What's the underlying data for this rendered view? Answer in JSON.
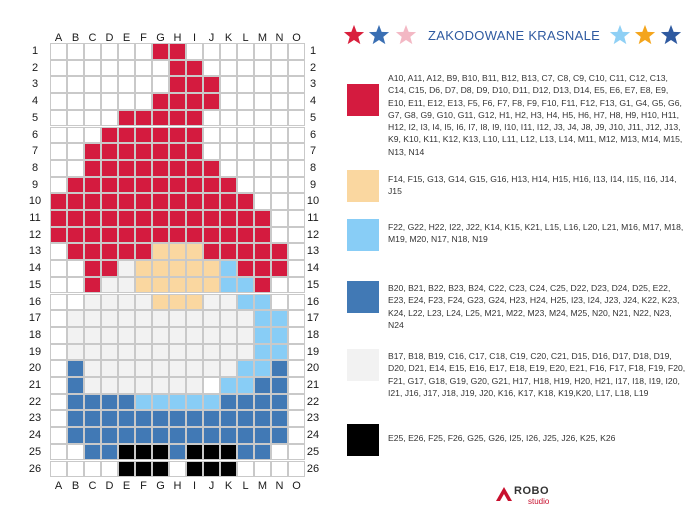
{
  "title": "ZAKODOWANE KRASNALE",
  "columns": [
    "A",
    "B",
    "C",
    "D",
    "E",
    "F",
    "G",
    "H",
    "I",
    "J",
    "K",
    "L",
    "M",
    "N",
    "O"
  ],
  "rows": [
    "1",
    "2",
    "3",
    "4",
    "5",
    "6",
    "7",
    "8",
    "9",
    "10",
    "11",
    "12",
    "13",
    "14",
    "15",
    "16",
    "17",
    "18",
    "19",
    "20",
    "21",
    "22",
    "23",
    "24",
    "25",
    "26"
  ],
  "stars": [
    {
      "name": "red-star-icon",
      "color": "#d91f3c"
    },
    {
      "name": "blue-star-icon",
      "color": "#3a6fb3"
    },
    {
      "name": "pink-star-icon",
      "color": "#f3b8c4"
    },
    {
      "name": "light-blue-star-icon",
      "color": "#8fd0f5"
    },
    {
      "name": "orange-star-icon",
      "color": "#f4a51c"
    },
    {
      "name": "navy-star-icon",
      "color": "#2f5aa0"
    }
  ],
  "legend": [
    {
      "color": "#d41b3f",
      "text": "A10, A11, A12, B9, B10, B11, B12, B13, C7, C8, C9, C10, C11, C12, C13, C14, C15, D6, D7, D8, D9, D10, D11, D12, D13, D14, E5, E6, E7, E8, E9, E10, E11, E12, E13, F5, F6, F7, F8, F9, F10, F11, F12, F13, G1, G4, G5, G6, G7, G8, G9, G10, G11, G12, H1, H2, H3, H4, H5, H6, H7, H8, H9, H10, H11, H12, I2, I3, I4, I5, I6, I7, I8, I9, I10, I11, I12, J3, J4, J8, J9, J10, J11, J12, J13, K9, K10, K11, K12, K13, L10, L11, L12, L13, L14, M11, M12, M13, M14, M15, N13, N14"
    },
    {
      "color": "#fad7a0",
      "text": "F14, F15, G13, G14, G15, G16, H13, H14, H15, H16, I13, I14, I15, I16, J14, J15"
    },
    {
      "color": "#88cdf6",
      "text": "F22, G22, H22, I22, J22, K14, K15, K21, L15, L16, L20, L21, M16, M17, M18, M19, M20, N17, N18, N19"
    },
    {
      "color": "#4179b5",
      "text": "B20, B21, B22, B23, B24, C22, C23, C24, C25, D22, D23, D24, D25, E22, E23, E24, F23, F24, G23, G24, H23, H24, H25, I23, I24, J23, J24, K22, K23, K24, L22, L23, L24, L25, M21, M22, M23, M24, M25, N20, N21, N22, N23, N24"
    },
    {
      "color": "#f2f2f2",
      "text": "B17, B18, B19, C16, C17, C18, C19, C20, C21, D15, D16, D17, D18, D19, D20, D21, E14, E15, E16, E17, E18, E19, E20, E21, F16, F17, F18, F19, F20, F21, G17, G18, G19, G20, G21, H17, H18, H19, H20, H21, I17, I18, I19, I20, I21, J16, J17, J18, J19, J20, K16, K17, K18, K19,K20, L17, L18, L19"
    },
    {
      "color": "#000000",
      "text": "E25, E26, F25, F26, G25, G26, I25, I26, J25, J26, K25, K26"
    }
  ],
  "logo": {
    "name": "ROBO",
    "sub": "studio"
  }
}
